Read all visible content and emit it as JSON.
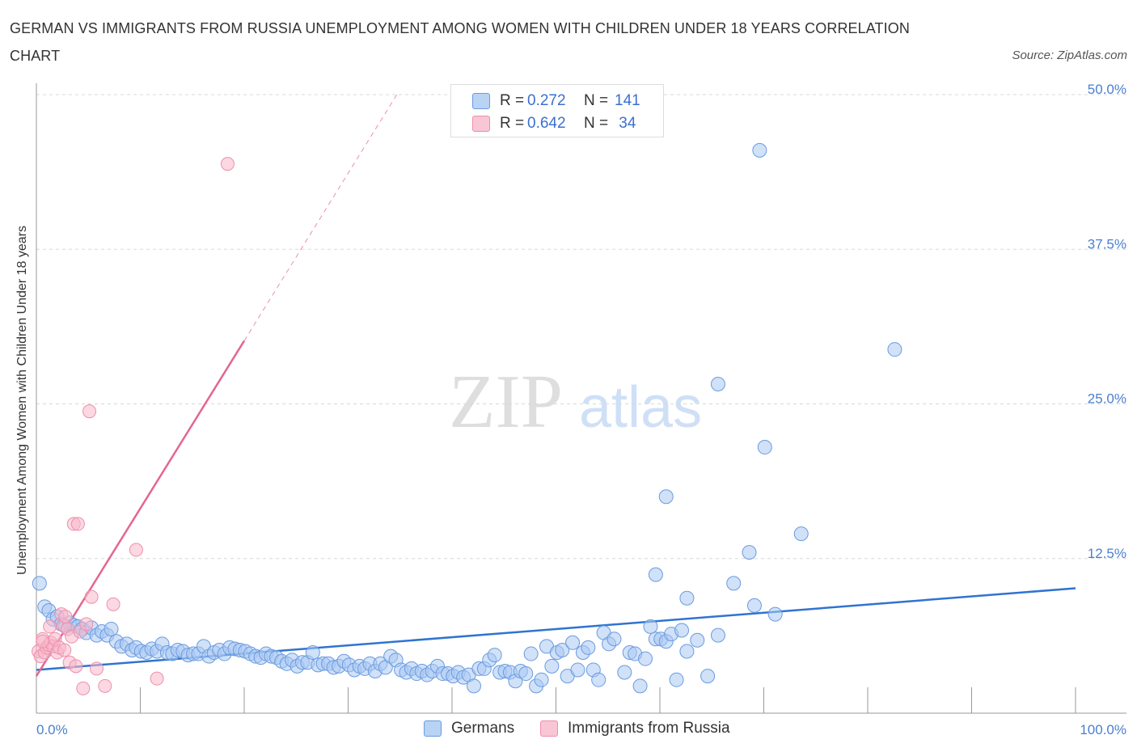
{
  "title": "GERMAN VS IMMIGRANTS FROM RUSSIA UNEMPLOYMENT AMONG WOMEN WITH CHILDREN UNDER 18 YEARS CORRELATION CHART",
  "source": "Source: ZipAtlas.com",
  "watermark": {
    "zip": "ZIP",
    "atlas": "atlas"
  },
  "legend": {
    "r_label": "R =",
    "n_label": "N =",
    "german": {
      "r": "0.272",
      "n": "141"
    },
    "russia": {
      "r": "0.642",
      "n": " 34"
    }
  },
  "bottom_legend": {
    "german": "Germans",
    "russia": "Immigrants from Russia"
  },
  "colors": {
    "german_fill": "#a9c8f2",
    "german_stroke": "#6a9be0",
    "german_line": "#2f74d0",
    "russia_fill": "#f7b8cb",
    "russia_stroke": "#ec8fab",
    "russia_line": "#e5668f",
    "tick_text": "#4a7fd0",
    "grid": "#d8d8d8"
  },
  "chart_data": {
    "type": "scatter",
    "title": "GERMAN VS IMMIGRANTS FROM RUSSIA UNEMPLOYMENT AMONG WOMEN WITH CHILDREN UNDER 18 YEARS CORRELATION CHART",
    "xlabel": "",
    "ylabel": "Unemployment Among Women with Children Under 18 years",
    "xlim": [
      0,
      100
    ],
    "ylim": [
      0,
      50
    ],
    "x_tick_labels": [
      "0.0%",
      "100.0%"
    ],
    "y_ticks": [
      12.5,
      25.0,
      37.5,
      50.0
    ],
    "y_tick_labels": [
      "12.5%",
      "25.0%",
      "37.5%",
      "50.0%"
    ],
    "grid": "horizontal dashed",
    "legend": "top-center",
    "series": [
      {
        "name": "Germans",
        "r": 0.272,
        "n": 141,
        "trend": {
          "x": [
            0,
            100
          ],
          "y": [
            3.5,
            10.1
          ]
        },
        "points": [
          [
            0.3,
            10.5
          ],
          [
            0.8,
            8.6
          ],
          [
            1.2,
            8.3
          ],
          [
            1.6,
            7.6
          ],
          [
            2.0,
            7.8
          ],
          [
            2.4,
            7.2
          ],
          [
            2.8,
            7.0
          ],
          [
            3.2,
            7.3
          ],
          [
            3.6,
            7.1
          ],
          [
            4.0,
            7.0
          ],
          [
            4.4,
            6.8
          ],
          [
            4.8,
            6.5
          ],
          [
            5.3,
            6.9
          ],
          [
            5.8,
            6.3
          ],
          [
            6.3,
            6.6
          ],
          [
            6.8,
            6.3
          ],
          [
            7.2,
            6.8
          ],
          [
            7.7,
            5.8
          ],
          [
            8.2,
            5.4
          ],
          [
            8.7,
            5.6
          ],
          [
            9.2,
            5.1
          ],
          [
            9.6,
            5.3
          ],
          [
            10.1,
            5.0
          ],
          [
            10.6,
            4.9
          ],
          [
            11.1,
            5.2
          ],
          [
            11.6,
            5.0
          ],
          [
            12.1,
            5.6
          ],
          [
            12.6,
            4.9
          ],
          [
            13.1,
            4.8
          ],
          [
            13.6,
            5.1
          ],
          [
            14.1,
            5.0
          ],
          [
            14.6,
            4.7
          ],
          [
            15.1,
            4.8
          ],
          [
            15.6,
            4.8
          ],
          [
            16.1,
            5.4
          ],
          [
            16.6,
            4.6
          ],
          [
            17.1,
            4.9
          ],
          [
            17.6,
            5.1
          ],
          [
            18.1,
            4.8
          ],
          [
            18.6,
            5.3
          ],
          [
            19.1,
            5.2
          ],
          [
            19.6,
            5.1
          ],
          [
            20.1,
            5.0
          ],
          [
            20.6,
            4.8
          ],
          [
            21.1,
            4.6
          ],
          [
            21.6,
            4.5
          ],
          [
            22.1,
            4.8
          ],
          [
            22.6,
            4.6
          ],
          [
            23.1,
            4.5
          ],
          [
            23.6,
            4.2
          ],
          [
            24.1,
            4.0
          ],
          [
            24.6,
            4.3
          ],
          [
            25.1,
            3.8
          ],
          [
            25.6,
            4.1
          ],
          [
            26.1,
            4.1
          ],
          [
            26.6,
            4.9
          ],
          [
            27.1,
            3.9
          ],
          [
            27.6,
            4.0
          ],
          [
            28.1,
            4.0
          ],
          [
            28.6,
            3.7
          ],
          [
            29.1,
            3.8
          ],
          [
            29.6,
            4.2
          ],
          [
            30.1,
            3.9
          ],
          [
            30.6,
            3.5
          ],
          [
            31.1,
            3.8
          ],
          [
            31.6,
            3.6
          ],
          [
            32.1,
            4.0
          ],
          [
            32.6,
            3.4
          ],
          [
            33.1,
            4.0
          ],
          [
            33.6,
            3.7
          ],
          [
            34.1,
            4.6
          ],
          [
            34.6,
            4.3
          ],
          [
            35.1,
            3.5
          ],
          [
            35.6,
            3.3
          ],
          [
            36.1,
            3.6
          ],
          [
            36.6,
            3.2
          ],
          [
            37.1,
            3.4
          ],
          [
            37.6,
            3.1
          ],
          [
            38.1,
            3.4
          ],
          [
            38.6,
            3.8
          ],
          [
            39.1,
            3.2
          ],
          [
            39.6,
            3.2
          ],
          [
            40.1,
            3.0
          ],
          [
            40.6,
            3.3
          ],
          [
            41.1,
            2.9
          ],
          [
            41.6,
            3.1
          ],
          [
            42.1,
            2.2
          ],
          [
            42.6,
            3.6
          ],
          [
            43.1,
            3.6
          ],
          [
            43.6,
            4.3
          ],
          [
            44.1,
            4.7
          ],
          [
            44.6,
            3.3
          ],
          [
            45.1,
            3.4
          ],
          [
            45.6,
            3.3
          ],
          [
            46.1,
            2.6
          ],
          [
            46.6,
            3.4
          ],
          [
            47.1,
            3.2
          ],
          [
            47.6,
            4.8
          ],
          [
            48.1,
            2.2
          ],
          [
            48.6,
            2.7
          ],
          [
            49.1,
            5.4
          ],
          [
            49.6,
            3.8
          ],
          [
            50.1,
            4.9
          ],
          [
            50.6,
            5.1
          ],
          [
            51.1,
            3.0
          ],
          [
            51.6,
            5.7
          ],
          [
            52.1,
            3.5
          ],
          [
            52.6,
            4.9
          ],
          [
            53.1,
            5.3
          ],
          [
            53.6,
            3.5
          ],
          [
            54.1,
            2.7
          ],
          [
            54.6,
            6.5
          ],
          [
            55.1,
            5.6
          ],
          [
            55.6,
            6.0
          ],
          [
            56.6,
            3.3
          ],
          [
            57.1,
            4.9
          ],
          [
            57.6,
            4.8
          ],
          [
            58.1,
            2.2
          ],
          [
            58.6,
            4.4
          ],
          [
            59.1,
            7.0
          ],
          [
            59.6,
            6.0
          ],
          [
            60.1,
            6.0
          ],
          [
            60.6,
            5.8
          ],
          [
            61.1,
            6.4
          ],
          [
            61.6,
            2.7
          ],
          [
            62.1,
            6.7
          ],
          [
            62.6,
            5.0
          ],
          [
            63.6,
            5.9
          ],
          [
            64.6,
            3.0
          ],
          [
            65.6,
            6.3
          ],
          [
            59.6,
            11.2
          ],
          [
            60.6,
            17.5
          ],
          [
            62.6,
            9.3
          ],
          [
            65.6,
            26.6
          ],
          [
            67.1,
            10.5
          ],
          [
            68.6,
            13.0
          ],
          [
            69.6,
            45.5
          ],
          [
            70.1,
            21.5
          ],
          [
            71.1,
            8.0
          ],
          [
            69.1,
            8.7
          ],
          [
            73.6,
            14.5
          ],
          [
            82.6,
            29.4
          ]
        ]
      },
      {
        "name": "Immigrants from Russia",
        "r": 0.642,
        "n": 34,
        "trend": {
          "x": [
            0,
            20
          ],
          "y": [
            3.0,
            30.1
          ]
        },
        "points": [
          [
            0.2,
            5.0
          ],
          [
            0.4,
            4.6
          ],
          [
            0.6,
            6.0
          ],
          [
            0.8,
            4.9
          ],
          [
            1.0,
            5.3
          ],
          [
            1.2,
            5.5
          ],
          [
            1.4,
            5.7
          ],
          [
            1.6,
            5.4
          ],
          [
            1.8,
            6.0
          ],
          [
            2.0,
            4.9
          ],
          [
            2.2,
            5.3
          ],
          [
            2.4,
            8.0
          ],
          [
            2.6,
            7.1
          ],
          [
            2.8,
            7.8
          ],
          [
            3.0,
            6.8
          ],
          [
            3.2,
            4.1
          ],
          [
            3.4,
            6.2
          ],
          [
            3.6,
            15.3
          ],
          [
            3.8,
            3.8
          ],
          [
            4.0,
            15.3
          ],
          [
            4.2,
            6.6
          ],
          [
            4.5,
            2.0
          ],
          [
            4.8,
            7.2
          ],
          [
            5.3,
            9.4
          ],
          [
            5.8,
            3.6
          ],
          [
            6.6,
            2.2
          ],
          [
            7.4,
            8.8
          ],
          [
            9.6,
            13.2
          ],
          [
            11.6,
            2.8
          ],
          [
            0.6,
            5.8
          ],
          [
            1.3,
            7.0
          ],
          [
            2.7,
            5.1
          ],
          [
            5.1,
            24.4
          ],
          [
            18.4,
            44.4
          ]
        ]
      }
    ]
  }
}
